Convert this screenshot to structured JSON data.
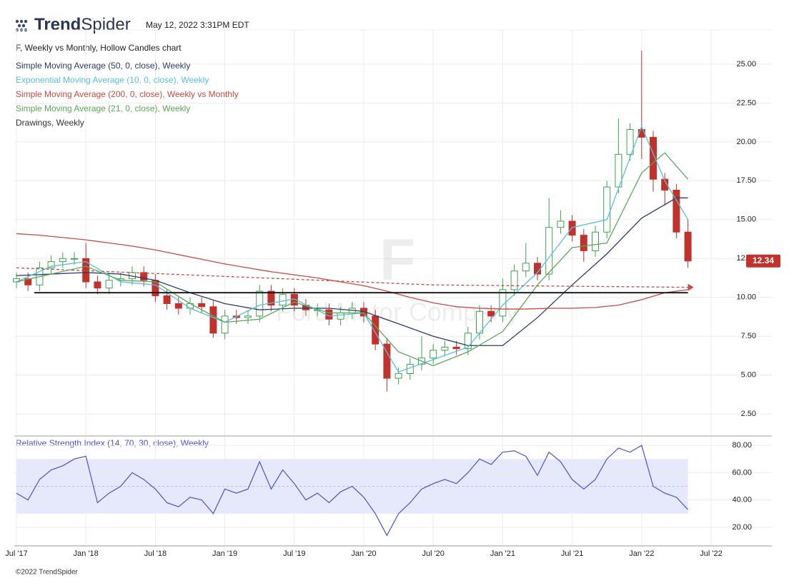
{
  "header": {
    "brand": [
      "Trend",
      "Spider"
    ],
    "timestamp": "May 12, 2022 3:31PM EDT"
  },
  "footer": {
    "copyright": "©2022 TrendSpider"
  },
  "chart_data": [
    {
      "type": "candlestick",
      "title": "F, Weekly vs Monthly, Hollow Candles chart",
      "watermark": {
        "symbol": "F",
        "name": "Ford Motor Company"
      },
      "x": [
        "2017-07",
        "2017-08",
        "2017-09",
        "2017-10",
        "2017-11",
        "2017-12",
        "2018-01",
        "2018-02",
        "2018-03",
        "2018-04",
        "2018-05",
        "2018-06",
        "2018-07",
        "2018-08",
        "2018-09",
        "2018-10",
        "2018-11",
        "2018-12",
        "2019-01",
        "2019-02",
        "2019-03",
        "2019-04",
        "2019-05",
        "2019-06",
        "2019-07",
        "2019-08",
        "2019-09",
        "2019-10",
        "2019-11",
        "2019-12",
        "2020-01",
        "2020-02",
        "2020-03",
        "2020-04",
        "2020-05",
        "2020-06",
        "2020-07",
        "2020-08",
        "2020-09",
        "2020-10",
        "2020-11",
        "2020-12",
        "2021-01",
        "2021-02",
        "2021-03",
        "2021-04",
        "2021-05",
        "2021-06",
        "2021-07",
        "2021-08",
        "2021-09",
        "2021-10",
        "2021-11",
        "2021-12",
        "2022-01",
        "2022-02",
        "2022-03",
        "2022-04",
        "2022-05"
      ],
      "open": [
        11.0,
        11.2,
        10.8,
        11.9,
        12.3,
        12.5,
        12.5,
        11.0,
        10.6,
        11.1,
        11.2,
        11.6,
        11.1,
        10.1,
        9.6,
        9.3,
        9.6,
        9.4,
        7.7,
        8.8,
        8.7,
        8.8,
        10.4,
        9.5,
        10.2,
        9.5,
        9.2,
        9.2,
        8.6,
        9.0,
        9.3,
        8.8,
        7.0,
        4.8,
        5.1,
        5.7,
        6.1,
        6.6,
        6.8,
        6.7,
        7.7,
        9.1,
        8.8,
        10.5,
        11.7,
        12.2,
        11.5,
        14.5,
        14.9,
        14.0,
        13.0,
        14.2,
        17.1,
        19.2,
        20.8,
        20.3,
        17.6,
        16.9,
        14.2
      ],
      "high": [
        11.6,
        11.6,
        12.3,
        12.7,
        12.9,
        12.9,
        13.5,
        11.4,
        11.5,
        11.6,
        12.0,
        12.0,
        11.5,
        10.5,
        10.0,
        10.0,
        10.0,
        9.8,
        9.2,
        9.2,
        9.2,
        10.8,
        10.8,
        10.6,
        10.6,
        9.9,
        9.6,
        9.6,
        9.4,
        9.7,
        9.7,
        9.2,
        7.4,
        5.5,
        6.1,
        7.5,
        7.0,
        7.2,
        7.2,
        8.1,
        9.5,
        9.5,
        11.2,
        12.1,
        13.5,
        12.6,
        16.4,
        15.6,
        15.3,
        14.4,
        14.6,
        17.5,
        21.5,
        21.2,
        25.87,
        20.7,
        18.0,
        17.3,
        15.0
      ],
      "low": [
        10.6,
        10.4,
        10.4,
        11.5,
        11.9,
        12.1,
        10.6,
        10.2,
        10.2,
        10.7,
        10.8,
        10.7,
        9.7,
        9.2,
        8.9,
        8.9,
        9.0,
        7.4,
        7.3,
        8.3,
        8.3,
        8.4,
        9.1,
        9.1,
        9.1,
        8.8,
        8.8,
        8.2,
        8.2,
        8.6,
        8.4,
        6.6,
        3.96,
        4.4,
        4.7,
        5.3,
        5.7,
        6.2,
        6.3,
        6.3,
        7.3,
        8.4,
        8.4,
        10.1,
        11.3,
        11.1,
        11.1,
        14.1,
        13.6,
        12.3,
        12.6,
        13.8,
        16.7,
        18.8,
        18.9,
        16.8,
        15.9,
        13.8,
        11.9
      ],
      "close": [
        11.2,
        10.8,
        11.9,
        12.3,
        12.5,
        12.5,
        11.0,
        10.6,
        11.1,
        11.2,
        11.6,
        11.1,
        10.1,
        9.6,
        9.3,
        9.6,
        9.4,
        7.7,
        8.8,
        8.7,
        8.8,
        10.4,
        9.5,
        10.2,
        9.5,
        9.2,
        9.2,
        8.6,
        9.0,
        9.3,
        8.8,
        7.0,
        4.8,
        5.1,
        5.7,
        6.1,
        6.6,
        6.8,
        6.7,
        7.7,
        9.1,
        8.8,
        10.5,
        11.7,
        12.2,
        11.5,
        14.5,
        14.9,
        14.0,
        13.0,
        14.2,
        17.1,
        19.2,
        20.8,
        20.3,
        17.6,
        16.9,
        14.2,
        12.34
      ],
      "up_color": "#3fa34d",
      "down_color": "#c0322b",
      "last_price_color": "#c0322b",
      "series": [
        {
          "name": "Simple Moving Average (50, 0, close), Weekly",
          "color": "#2c3e66",
          "x": [
            "2017-07",
            "2017-10",
            "2018-01",
            "2018-04",
            "2018-07",
            "2018-10",
            "2019-01",
            "2019-04",
            "2019-07",
            "2019-10",
            "2020-01",
            "2020-04",
            "2020-07",
            "2020-10",
            "2021-01",
            "2021-04",
            "2021-07",
            "2021-10",
            "2022-01",
            "2022-04",
            "2022-05"
          ],
          "values": [
            11.4,
            11.5,
            11.6,
            11.5,
            11.1,
            10.3,
            9.6,
            9.2,
            9.3,
            9.3,
            9.1,
            8.3,
            7.5,
            6.9,
            6.9,
            8.7,
            10.8,
            12.8,
            15.1,
            16.4,
            16.4
          ]
        },
        {
          "name": "Exponential Moving Average (10, 0, close), Weekly",
          "color": "#5bbfdc",
          "x": [
            "2017-07",
            "2017-10",
            "2018-01",
            "2018-04",
            "2018-07",
            "2018-10",
            "2019-01",
            "2019-04",
            "2019-07",
            "2019-10",
            "2020-01",
            "2020-04",
            "2020-07",
            "2020-10",
            "2021-01",
            "2021-04",
            "2021-07",
            "2021-10",
            "2022-01",
            "2022-03",
            "2022-05"
          ],
          "values": [
            11.0,
            12.0,
            12.3,
            11.0,
            10.8,
            9.3,
            8.4,
            9.5,
            9.9,
            8.8,
            9.0,
            5.2,
            6.0,
            6.8,
            9.5,
            11.6,
            14.5,
            15.0,
            21.0,
            17.5,
            15.0
          ]
        },
        {
          "name": "Simple Moving Average (200, 0, close), Weekly vs Monthly",
          "color": "#c94a44",
          "dashed": true,
          "x": [
            "2017-07",
            "2019-01",
            "2020-07",
            "2022-05"
          ],
          "values": [
            11.9,
            11.35,
            10.8,
            10.65
          ]
        },
        {
          "name": "Simple Moving Average (21, 0, close), Weekly",
          "color": "#5aa85a",
          "x": [
            "2017-07",
            "2017-10",
            "2018-01",
            "2018-04",
            "2018-07",
            "2018-10",
            "2019-01",
            "2019-04",
            "2019-07",
            "2019-10",
            "2020-01",
            "2020-04",
            "2020-07",
            "2020-10",
            "2021-01",
            "2021-04",
            "2021-07",
            "2021-10",
            "2022-01",
            "2022-03",
            "2022-05"
          ],
          "values": [
            11.0,
            11.5,
            12.0,
            11.1,
            11.0,
            9.6,
            8.4,
            8.6,
            9.7,
            9.0,
            9.0,
            6.5,
            5.6,
            6.5,
            7.8,
            10.8,
            13.2,
            13.5,
            18.0,
            19.3,
            17.6
          ]
        },
        {
          "color": "#c94a44",
          "x": [
            "2017-07",
            "2017-09",
            "2017-11",
            "2018-01",
            "2018-03",
            "2018-05",
            "2018-07",
            "2018-09",
            "2018-11",
            "2019-01",
            "2019-03",
            "2019-05",
            "2019-07",
            "2019-09",
            "2019-11",
            "2020-01",
            "2020-03",
            "2020-05",
            "2020-07",
            "2020-09",
            "2020-11",
            "2021-01",
            "2021-03",
            "2021-05",
            "2021-07",
            "2021-09",
            "2021-11",
            "2022-01",
            "2022-03",
            "2022-05"
          ],
          "values": [
            14.1,
            14.0,
            13.85,
            13.7,
            13.5,
            13.3,
            13.05,
            12.75,
            12.45,
            12.15,
            11.9,
            11.65,
            11.45,
            11.25,
            11.0,
            10.75,
            10.4,
            10.0,
            9.65,
            9.4,
            9.3,
            9.25,
            9.25,
            9.3,
            9.3,
            9.35,
            9.5,
            9.85,
            10.3,
            10.5
          ]
        }
      ],
      "drawings": {
        "name": "Drawings, Weekly",
        "color": "#111111",
        "level": 10.3
      },
      "xlim": [
        "2017-07",
        "2022-12"
      ],
      "xticks": [
        {
          "value": "2017-07",
          "label": "Jul '17"
        },
        {
          "value": "2018-01",
          "label": "Jan '18"
        },
        {
          "value": "2018-07",
          "label": "Jul '18"
        },
        {
          "value": "2019-01",
          "label": "Jan '19"
        },
        {
          "value": "2019-07",
          "label": "Jul '19"
        },
        {
          "value": "2020-01",
          "label": "Jan '20"
        },
        {
          "value": "2020-07",
          "label": "Jul '20"
        },
        {
          "value": "2021-01",
          "label": "Jan '21"
        },
        {
          "value": "2021-07",
          "label": "Jul '21"
        },
        {
          "value": "2022-01",
          "label": "Jan '22"
        },
        {
          "value": "2022-07",
          "label": "Jul '22"
        }
      ],
      "ylim": [
        1.13,
        27.2
      ],
      "yticks": [
        {
          "value": 2.5,
          "label": "2.50"
        },
        {
          "value": 5,
          "label": "5.00"
        },
        {
          "value": 7.5,
          "label": "7.50"
        },
        {
          "value": 10,
          "label": "10.00"
        },
        {
          "value": 12.5,
          "label": "12.50"
        },
        {
          "value": 15,
          "label": "15.00"
        },
        {
          "value": 17.5,
          "label": "17.50"
        },
        {
          "value": 20,
          "label": "20.00"
        },
        {
          "value": 22.5,
          "label": "22.50"
        },
        {
          "value": 25,
          "label": "25.00"
        }
      ],
      "grid": true
    },
    {
      "type": "line",
      "title": "Relative Strength Index (14, 70, 30, close), Weekly",
      "color": "#4a52d6",
      "band_color": "#e6e9fb",
      "x": [
        "2017-07",
        "2017-08",
        "2017-09",
        "2017-10",
        "2017-11",
        "2017-12",
        "2018-01",
        "2018-02",
        "2018-03",
        "2018-04",
        "2018-05",
        "2018-06",
        "2018-07",
        "2018-08",
        "2018-09",
        "2018-10",
        "2018-11",
        "2018-12",
        "2019-01",
        "2019-02",
        "2019-03",
        "2019-04",
        "2019-05",
        "2019-06",
        "2019-07",
        "2019-08",
        "2019-09",
        "2019-10",
        "2019-11",
        "2019-12",
        "2020-01",
        "2020-02",
        "2020-03",
        "2020-04",
        "2020-05",
        "2020-06",
        "2020-07",
        "2020-08",
        "2020-09",
        "2020-10",
        "2020-11",
        "2020-12",
        "2021-01",
        "2021-02",
        "2021-03",
        "2021-04",
        "2021-05",
        "2021-06",
        "2021-07",
        "2021-08",
        "2021-09",
        "2021-10",
        "2021-11",
        "2021-12",
        "2022-01",
        "2022-02",
        "2022-03",
        "2022-04",
        "2022-05"
      ],
      "values": [
        45,
        40,
        55,
        62,
        65,
        70,
        72,
        38,
        45,
        50,
        60,
        55,
        48,
        38,
        35,
        42,
        40,
        30,
        48,
        45,
        48,
        68,
        48,
        62,
        52,
        40,
        45,
        38,
        46,
        50,
        42,
        30,
        14,
        30,
        38,
        48,
        52,
        55,
        52,
        60,
        70,
        66,
        75,
        76,
        72,
        58,
        75,
        68,
        55,
        48,
        55,
        70,
        78,
        75,
        80,
        50,
        45,
        42,
        33
      ],
      "band": [
        30,
        70
      ],
      "midline": 50,
      "ylim": [
        6.4,
        86.3
      ],
      "yticks": [
        {
          "value": 20,
          "label": "20.00"
        },
        {
          "value": 40,
          "label": "40.00"
        },
        {
          "value": 60,
          "label": "60.00"
        },
        {
          "value": 80,
          "label": "80.00"
        }
      ],
      "grid": true
    }
  ]
}
